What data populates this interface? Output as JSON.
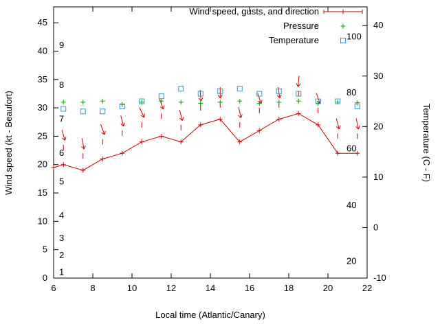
{
  "legend": {
    "wind": "Wind speed, gusts, and direction",
    "pressure": "Pressure",
    "temperature": "Temperature"
  },
  "axes": {
    "x_label": "Local time (Atlantic/Canary)",
    "y_left_label": "Wind speed (kt - Beaufort)",
    "y_right_label": "Temperature (C - F)",
    "x_ticks": [
      6,
      8,
      10,
      12,
      14,
      16,
      18,
      20,
      22
    ],
    "y_left_ticks": [
      0,
      5,
      10,
      15,
      20,
      25,
      30,
      35,
      40,
      45
    ],
    "y_right_ticks": [
      -10,
      0,
      10,
      20,
      30,
      40
    ]
  },
  "chart_data": {
    "type": "line",
    "title": "",
    "xlabel": "Local time (Atlantic/Canary)",
    "ylabel_left": "Wind speed (kt - Beaufort)",
    "ylabel_right": "Temperature (C - F)",
    "legend_position": "top-right-inside",
    "grid": false,
    "x_range": [
      6,
      22
    ],
    "y_left_range": [
      0,
      47.8
    ],
    "y_right_range": [
      -10,
      43.7
    ],
    "x": [
      6.0,
      6.5,
      7.5,
      8.5,
      9.5,
      10.5,
      11.5,
      12.5,
      13.5,
      14.5,
      15.5,
      16.5,
      17.5,
      18.5,
      19.5,
      20.5,
      21.5
    ],
    "wind_speed_kt": [
      19.5,
      20,
      19,
      21,
      22,
      24,
      25,
      24,
      27,
      28,
      24,
      26,
      28,
      29,
      27,
      22,
      22
    ],
    "gust_kt": [
      null,
      23.5,
      22,
      24.5,
      26,
      27.5,
      29,
      27,
      30.5,
      31,
      27.5,
      30,
      31,
      33,
      30,
      25.5,
      25.5
    ],
    "arrow_rot_deg": [
      null,
      -15,
      -10,
      -20,
      -15,
      -25,
      -20,
      -15,
      -5,
      0,
      -12,
      -18,
      -8,
      5,
      -20,
      -15,
      -12
    ],
    "pressure_plotted": [
      null,
      31,
      31,
      31.2,
      30.6,
      31,
      31.2,
      31,
      30.8,
      31,
      31.2,
      30.8,
      31,
      31.2,
      30.8,
      31,
      30.9
    ],
    "temperature_c": [
      null,
      23.5,
      23,
      23,
      24,
      25,
      26,
      27.5,
      26.5,
      27,
      27.5,
      26.5,
      27,
      26.5,
      25,
      25,
      24
    ],
    "beaufort_scale_labels": [
      [
        "1",
        1
      ],
      [
        "2",
        4
      ],
      [
        "3",
        7
      ],
      [
        "4",
        11
      ],
      [
        "5",
        17
      ],
      [
        "6",
        22
      ],
      [
        "7",
        28
      ],
      [
        "8",
        34
      ],
      [
        "9",
        41
      ]
    ],
    "fahrenheit_labels": [
      [
        "20",
        -6.7
      ],
      [
        "40",
        4.4
      ],
      [
        "60",
        15.6
      ],
      [
        "80",
        26.7
      ],
      [
        "100",
        37.8
      ]
    ],
    "colors": {
      "wind": "#cc0000",
      "pressure": "#00a000",
      "temperature": "#3697cc",
      "axis": "#000000"
    }
  }
}
